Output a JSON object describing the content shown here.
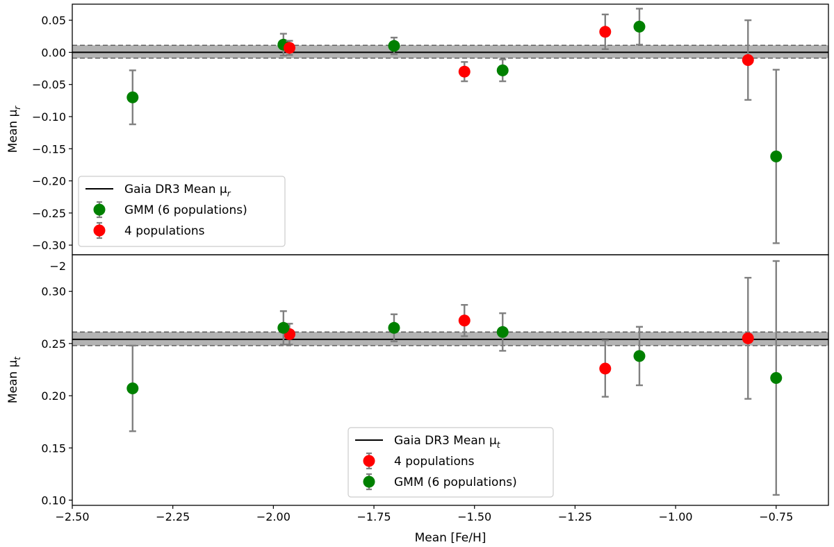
{
  "chart_data": [
    {
      "type": "scatter",
      "panel": "top",
      "xlabel": "",
      "ylabel": "Mean μ",
      "ylabel_sub": "r",
      "xlim": [
        -2.5,
        -0.62
      ],
      "ylim": [
        -0.315,
        0.075
      ],
      "yticks": [
        0.05,
        0.0,
        -0.05,
        -0.1,
        -0.15,
        -0.2,
        -0.25,
        -0.3
      ],
      "ytick_labels": [
        "0.05",
        "0.00",
        "−0.05",
        "−0.10",
        "−0.15",
        "−0.20",
        "−0.25",
        "−0.30"
      ],
      "reference": {
        "label": "Gaia DR3 Mean μ",
        "label_sub": "r",
        "value": 0.0,
        "band": [
          -0.009,
          0.011
        ],
        "color": "#000000"
      },
      "series": [
        {
          "name": "GMM (6 populations)",
          "color": "#008000",
          "x": [
            -2.35,
            -1.975,
            -1.7,
            -1.43,
            -1.09,
            -0.75
          ],
          "y": [
            -0.07,
            0.012,
            0.01,
            -0.028,
            0.04,
            -0.162
          ],
          "err": [
            0.042,
            0.017,
            0.013,
            0.017,
            0.028,
            0.135
          ]
        },
        {
          "name": "4 populations",
          "color": "#ff0000",
          "x": [
            -1.96,
            -1.525,
            -1.175,
            -0.82
          ],
          "y": [
            0.007,
            -0.03,
            0.032,
            -0.012
          ],
          "err": [
            0.011,
            0.015,
            0.027,
            0.062
          ]
        }
      ],
      "legend_order": [
        "reference",
        "GMM (6 populations)",
        "4 populations"
      ],
      "legend_position": "lower-left"
    },
    {
      "type": "scatter",
      "panel": "bottom",
      "xlabel": "Mean [Fe/H]",
      "ylabel": "Mean μ",
      "ylabel_sub": "t",
      "xlim": [
        -2.5,
        -0.62
      ],
      "ylim": [
        0.095,
        0.335
      ],
      "xticks": [
        -2.5,
        -2.25,
        -2.0,
        -1.75,
        -1.5,
        -1.25,
        -1.0,
        -0.75
      ],
      "xtick_labels": [
        "−2.50",
        "−2.25",
        "−2.00",
        "−1.75",
        "−1.50",
        "−1.25",
        "−1.00",
        "−0.75"
      ],
      "yticks": [
        0.3,
        0.25,
        0.2,
        0.15,
        0.1
      ],
      "ytick_labels": [
        "0.30",
        "0.25",
        "0.20",
        "0.15",
        "0.10"
      ],
      "stray_tick_label": "−2",
      "reference": {
        "label": "Gaia DR3 Mean μ",
        "label_sub": "t",
        "value": 0.254,
        "band": [
          0.248,
          0.261
        ],
        "color": "#000000"
      },
      "series": [
        {
          "name": "4 populations",
          "color": "#ff0000",
          "x": [
            -1.96,
            -1.525,
            -1.175,
            -0.82
          ],
          "y": [
            0.259,
            0.272,
            0.226,
            0.255
          ],
          "err": [
            0.01,
            0.015,
            0.027,
            0.058
          ]
        },
        {
          "name": "GMM (6 populations)",
          "color": "#008000",
          "x": [
            -2.35,
            -1.975,
            -1.7,
            -1.43,
            -1.09,
            -0.75
          ],
          "y": [
            0.207,
            0.265,
            0.265,
            0.261,
            0.238,
            0.217
          ],
          "err": [
            0.041,
            0.016,
            0.013,
            0.018,
            0.028,
            0.112
          ]
        }
      ],
      "legend_order": [
        "reference",
        "4 populations",
        "GMM (6 populations)"
      ],
      "legend_position": "lower-center"
    }
  ]
}
